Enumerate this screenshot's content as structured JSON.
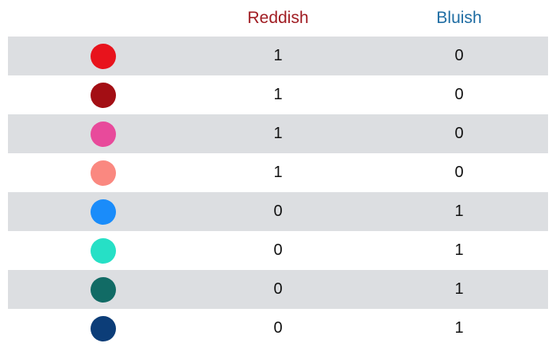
{
  "header": {
    "reddish_label": "Reddish",
    "bluish_label": "Bluish",
    "reddish_color": "#a01c22",
    "bluish_color": "#1f6da3"
  },
  "table": {
    "row_shading": "#dcdee1",
    "rows": [
      {
        "color": "#e8131c",
        "reddish": "1",
        "bluish": "0",
        "shaded": true
      },
      {
        "color": "#a30e14",
        "reddish": "1",
        "bluish": "0",
        "shaded": false
      },
      {
        "color": "#e84a9b",
        "reddish": "1",
        "bluish": "0",
        "shaded": true
      },
      {
        "color": "#fa8880",
        "reddish": "1",
        "bluish": "0",
        "shaded": false
      },
      {
        "color": "#1a8cfa",
        "reddish": "0",
        "bluish": "1",
        "shaded": true
      },
      {
        "color": "#26e0c6",
        "reddish": "0",
        "bluish": "1",
        "shaded": false
      },
      {
        "color": "#116b65",
        "reddish": "0",
        "bluish": "1",
        "shaded": true
      },
      {
        "color": "#0c3d78",
        "reddish": "0",
        "bluish": "1",
        "shaded": false
      }
    ]
  }
}
